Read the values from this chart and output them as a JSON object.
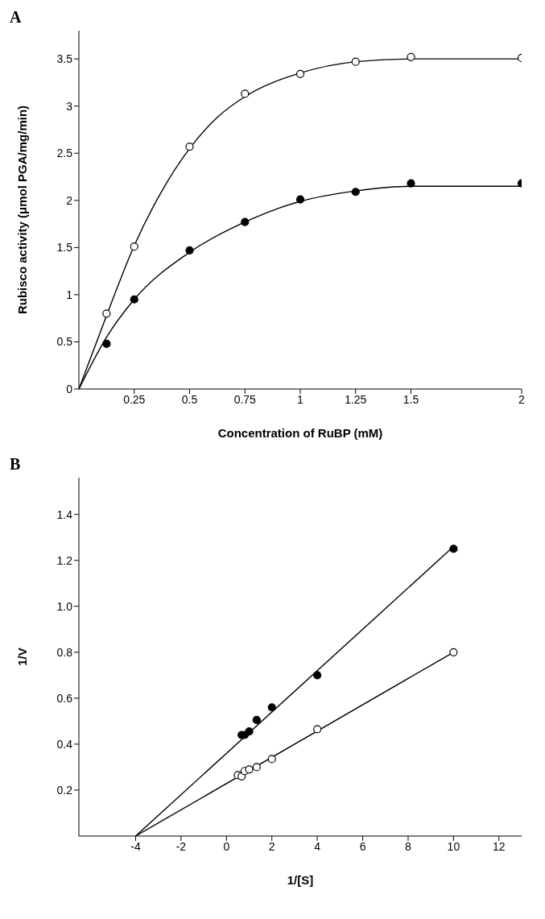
{
  "chart_data": [
    {
      "type": "scatter",
      "title": "A",
      "xlabel": "Concentration of RuBP (mM)",
      "ylabel": "Rubisco activity (μmol PGA/mg/min)",
      "xlim": [
        0,
        2
      ],
      "xticks": [
        0.25,
        0.5,
        0.75,
        1,
        1.25,
        1.5,
        2
      ],
      "ylim": [
        0,
        3.8
      ],
      "yticks": [
        0,
        0.5,
        1,
        1.5,
        2,
        2.5,
        3,
        3.5
      ],
      "grid": false,
      "series": [
        {
          "marker": "circle",
          "color": "#ffffff",
          "x": [
            0.125,
            0.25,
            0.5,
            0.75,
            1,
            1.25,
            1.5,
            2
          ],
          "values": [
            0.8,
            1.51,
            2.57,
            3.13,
            3.34,
            3.47,
            3.52,
            3.51
          ]
        },
        {
          "marker": "circle",
          "color": "#000000",
          "x": [
            0.125,
            0.25,
            0.5,
            0.75,
            1,
            1.25,
            1.5,
            2
          ],
          "values": [
            0.48,
            0.95,
            1.47,
            1.77,
            2.01,
            2.09,
            2.18,
            2.18
          ]
        },
        {
          "type": "line",
          "marker": "none",
          "color": "#000000",
          "x": [
            0,
            0.125,
            0.25,
            0.375,
            0.5,
            0.625,
            0.75,
            1,
            1.25,
            1.5,
            2
          ],
          "values": [
            0,
            0.78,
            1.52,
            2.1,
            2.55,
            2.88,
            3.1,
            3.35,
            3.47,
            3.5,
            3.5
          ]
        },
        {
          "type": "line",
          "marker": "none",
          "color": "#000000",
          "x": [
            0,
            0.125,
            0.25,
            0.5,
            0.75,
            1,
            1.25,
            1.5,
            2
          ],
          "values": [
            0,
            0.55,
            0.95,
            1.45,
            1.77,
            1.99,
            2.1,
            2.15,
            2.15
          ]
        }
      ]
    },
    {
      "type": "scatter",
      "title": "B",
      "xlabel": "1/[S]",
      "ylabel": "1/V",
      "xlim": [
        -6.5,
        13
      ],
      "xticks": [
        -4,
        -2,
        0,
        2,
        4,
        6,
        8,
        10,
        12
      ],
      "ylim": [
        0,
        1.56
      ],
      "yticks": [
        0.2,
        0.4,
        0.6,
        0.8,
        {
          "value": 1,
          "label": "1.0"
        },
        1.2,
        1.4
      ],
      "grid": false,
      "series": [
        {
          "marker": "circle",
          "color": "#ffffff",
          "x": [
            0.5,
            0.667,
            0.8,
            1,
            1.33,
            2,
            4,
            10
          ],
          "values": [
            0.265,
            0.26,
            0.283,
            0.29,
            0.3,
            0.335,
            0.465,
            0.8
          ]
        },
        {
          "marker": "circle",
          "color": "#000000",
          "x": [
            0.667,
            0.8,
            1,
            1.33,
            2,
            4,
            10
          ],
          "values": [
            0.44,
            0.44,
            0.455,
            0.505,
            0.56,
            0.7,
            1.25
          ]
        },
        {
          "type": "line",
          "marker": "none",
          "color": "#000000",
          "x": [
            -4,
            10
          ],
          "values": [
            0,
            0.8
          ]
        },
        {
          "type": "line",
          "marker": "none",
          "color": "#000000",
          "x": [
            -4,
            10
          ],
          "values": [
            0,
            1.26
          ]
        }
      ]
    }
  ]
}
